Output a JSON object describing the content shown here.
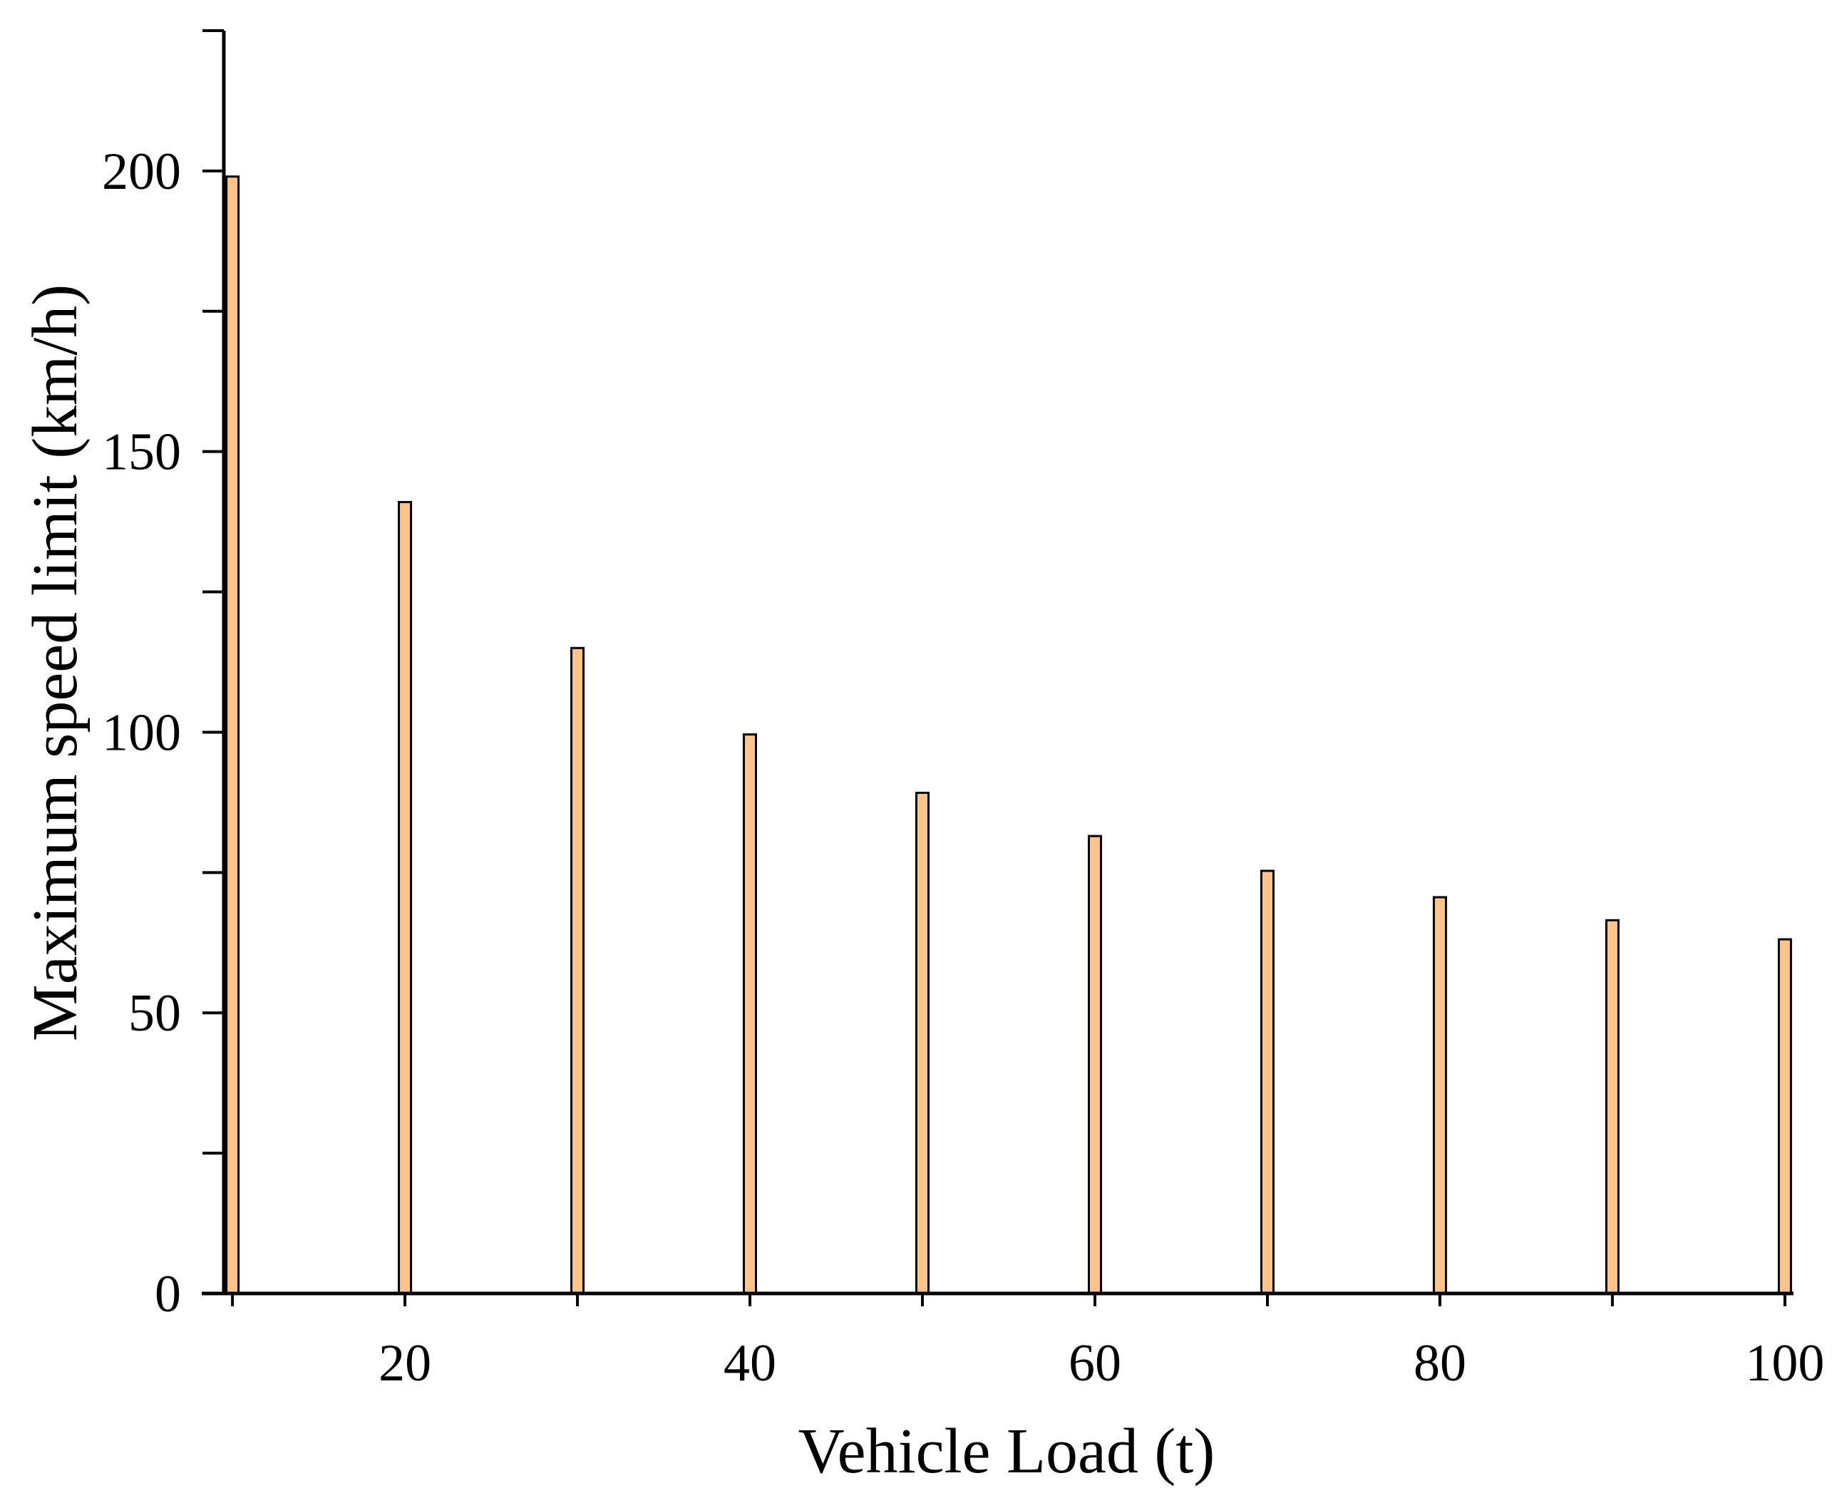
{
  "chart_data": {
    "type": "bar",
    "x": [
      10,
      20,
      30,
      40,
      50,
      60,
      70,
      80,
      90,
      100
    ],
    "values": [
      199,
      141,
      115,
      99.6,
      89.2,
      81.5,
      75.3,
      70.6,
      66.5,
      63.1
    ],
    "xlabel": "Vehicle Load (t)",
    "ylabel": "Maximum speed limit (km/h)",
    "xlim": [
      9.5,
      100.5
    ],
    "ylim": [
      0,
      225
    ],
    "x_ticks": [
      20,
      40,
      60,
      80,
      100
    ],
    "x_tick_labels": [
      "20",
      "40",
      "60",
      "80",
      "100"
    ],
    "y_ticks": [
      0,
      50,
      100,
      150,
      200
    ],
    "y_tick_labels": [
      "0",
      "50",
      "100",
      "150",
      "200"
    ],
    "grid": false,
    "legend": false,
    "bar_color": "#FFC489",
    "bar_edge_color": "#000000"
  }
}
